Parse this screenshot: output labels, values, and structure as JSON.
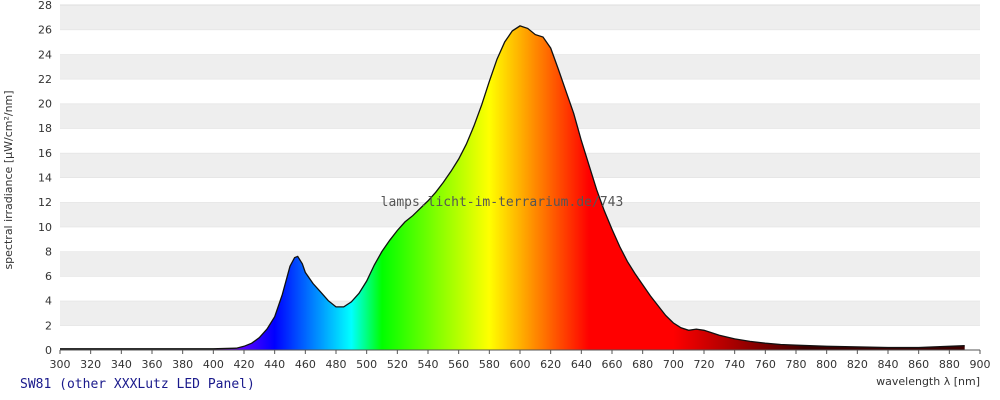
{
  "chart_data": {
    "type": "area",
    "title": "",
    "xlabel": "wavelength λ [nm]",
    "ylabel": "spectral irradiance [µW/cm²/nm]",
    "xlim": [
      300,
      900
    ],
    "ylim": [
      0,
      28
    ],
    "x_ticks": [
      300,
      320,
      340,
      360,
      380,
      400,
      420,
      440,
      460,
      480,
      500,
      520,
      540,
      560,
      580,
      600,
      620,
      640,
      660,
      680,
      700,
      720,
      740,
      760,
      780,
      800,
      820,
      840,
      860,
      880,
      900
    ],
    "y_ticks": [
      0,
      2,
      4,
      6,
      8,
      10,
      12,
      14,
      16,
      18,
      20,
      22,
      24,
      26,
      28
    ],
    "grid": "alternating horizontal bands",
    "fill": "visible spectrum colors by wavelength",
    "series": [
      {
        "x": [
          300,
          380,
          400,
          415,
          420,
          425,
          430,
          435,
          440,
          445,
          450,
          453,
          455,
          458,
          460,
          465,
          470,
          475,
          480,
          485,
          490,
          495,
          500,
          505,
          510,
          515,
          520,
          525,
          530,
          535,
          540,
          545,
          550,
          555,
          560,
          565,
          570,
          575,
          580,
          585,
          590,
          595,
          600,
          605,
          610,
          615,
          620,
          625,
          630,
          635,
          640,
          645,
          650,
          655,
          660,
          665,
          670,
          675,
          680,
          685,
          690,
          695,
          700,
          705,
          710,
          715,
          720,
          725,
          730,
          740,
          750,
          760,
          770,
          780,
          800,
          820,
          840,
          860,
          880,
          890
        ],
        "y": [
          0.1,
          0.1,
          0.1,
          0.15,
          0.3,
          0.55,
          1.0,
          1.7,
          2.7,
          4.5,
          6.8,
          7.5,
          7.6,
          7.0,
          6.3,
          5.4,
          4.7,
          4.0,
          3.5,
          3.5,
          3.9,
          4.6,
          5.6,
          6.9,
          8.0,
          8.9,
          9.7,
          10.4,
          10.9,
          11.5,
          12.1,
          12.8,
          13.6,
          14.5,
          15.5,
          16.7,
          18.2,
          19.9,
          21.8,
          23.6,
          25.0,
          25.9,
          26.3,
          26.1,
          25.6,
          25.4,
          24.5,
          22.8,
          21.0,
          19.2,
          17.0,
          15.0,
          13.0,
          11.3,
          9.8,
          8.4,
          7.2,
          6.2,
          5.3,
          4.4,
          3.6,
          2.8,
          2.2,
          1.8,
          1.6,
          1.7,
          1.6,
          1.4,
          1.2,
          0.9,
          0.7,
          0.55,
          0.45,
          0.4,
          0.3,
          0.25,
          0.2,
          0.2,
          0.3,
          0.35
        ]
      }
    ]
  },
  "watermark": "lamps.licht-im-terrarium.de/743",
  "caption": "SW81 (other XXXLutz LED Panel)"
}
